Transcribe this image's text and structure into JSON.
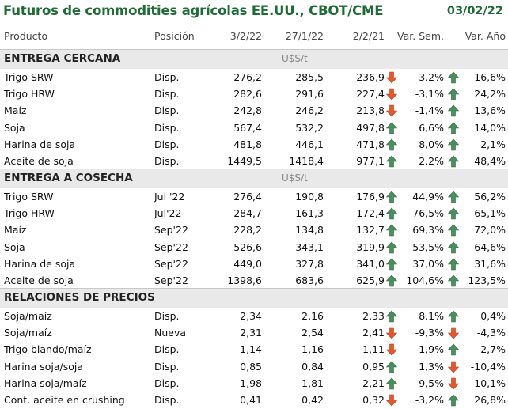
{
  "header": {
    "title": "Futuros de commodities agrícolas EE.UU., CBOT/CME",
    "date": "03/02/22"
  },
  "columns": {
    "product": "Producto",
    "position": "Posición",
    "d1": "3/2/22",
    "d2": "27/1/22",
    "d3": "2/2/21",
    "week": "Var. Sem.",
    "year": "Var. Año"
  },
  "colors": {
    "title": "#1e6b35",
    "up": "#4a8f5f",
    "down": "#d9512c",
    "section_bg": "#e9e9e9"
  },
  "sections": [
    {
      "title": "ENTREGA CERCANA",
      "unit": "U$S/t",
      "rows": [
        {
          "product": "Trigo SRW",
          "position": "Disp.",
          "d1": "276,2",
          "d2": "285,5",
          "d3": "236,9",
          "d3_icon": "arrow-down-icon",
          "week": "-3,2%",
          "week_icon": "arrow-up-icon",
          "year": "16,6%"
        },
        {
          "product": "Trigo HRW",
          "position": "Disp.",
          "d1": "282,6",
          "d2": "291,6",
          "d3": "227,4",
          "d3_icon": "arrow-down-icon",
          "week": "-3,1%",
          "week_icon": "arrow-up-icon",
          "year": "24,2%"
        },
        {
          "product": "Maíz",
          "position": "Disp.",
          "d1": "242,8",
          "d2": "246,2",
          "d3": "213,8",
          "d3_icon": "arrow-down-icon",
          "week": "-1,4%",
          "week_icon": "arrow-up-icon",
          "year": "13,6%"
        },
        {
          "product": "Soja",
          "position": "Disp.",
          "d1": "567,4",
          "d2": "532,2",
          "d3": "497,8",
          "d3_icon": "arrow-up-icon",
          "week": "6,6%",
          "week_icon": "arrow-up-icon",
          "year": "14,0%"
        },
        {
          "product": "Harina de soja",
          "position": "Disp.",
          "d1": "481,8",
          "d2": "446,1",
          "d3": "471,8",
          "d3_icon": "arrow-up-icon",
          "week": "8,0%",
          "week_icon": "arrow-up-icon",
          "year": "2,1%"
        },
        {
          "product": "Aceite de soja",
          "position": "Disp.",
          "d1": "1449,5",
          "d2": "1418,4",
          "d3": "977,1",
          "d3_icon": "arrow-up-icon",
          "week": "2,2%",
          "week_icon": "arrow-up-icon",
          "year": "48,4%"
        }
      ]
    },
    {
      "title": "ENTREGA A COSECHA",
      "unit": "U$S/t",
      "rows": [
        {
          "product": "Trigo SRW",
          "position": "Jul '22",
          "d1": "276,4",
          "d2": "190,8",
          "d3": "176,9",
          "d3_icon": "arrow-up-icon",
          "week": "44,9%",
          "week_icon": "arrow-up-icon",
          "year": "56,2%"
        },
        {
          "product": "Trigo HRW",
          "position": "Jul'22",
          "d1": "284,7",
          "d2": "161,3",
          "d3": "172,4",
          "d3_icon": "arrow-up-icon",
          "week": "76,5%",
          "week_icon": "arrow-up-icon",
          "year": "65,1%"
        },
        {
          "product": "Maíz",
          "position": "Sep'22",
          "d1": "228,2",
          "d2": "134,8",
          "d3": "132,7",
          "d3_icon": "arrow-up-icon",
          "week": "69,3%",
          "week_icon": "arrow-up-icon",
          "year": "72,0%"
        },
        {
          "product": "Soja",
          "position": "Sep'22",
          "d1": "526,6",
          "d2": "343,1",
          "d3": "319,9",
          "d3_icon": "arrow-up-icon",
          "week": "53,5%",
          "week_icon": "arrow-up-icon",
          "year": "64,6%"
        },
        {
          "product": "Harina de soja",
          "position": "Sep'22",
          "d1": "449,0",
          "d2": "327,8",
          "d3": "341,0",
          "d3_icon": "arrow-up-icon",
          "week": "37,0%",
          "week_icon": "arrow-up-icon",
          "year": "31,6%"
        },
        {
          "product": "Aceite de soja",
          "position": "Sep'22",
          "d1": "1398,6",
          "d2": "683,6",
          "d3": "625,9",
          "d3_icon": "arrow-up-icon",
          "week": "104,6%",
          "week_icon": "arrow-up-icon",
          "year": "123,5%"
        }
      ]
    },
    {
      "title": "RELACIONES DE PRECIOS",
      "unit": "",
      "rows": [
        {
          "product": "Soja/maíz",
          "position": "Disp.",
          "d1": "2,34",
          "d2": "2,16",
          "d3": "2,33",
          "d3_icon": "arrow-up-icon",
          "week": "8,1%",
          "week_icon": "arrow-up-icon",
          "year": "0,4%"
        },
        {
          "product": "Soja/maíz",
          "position": "Nueva",
          "d1": "2,31",
          "d2": "2,54",
          "d3": "2,41",
          "d3_icon": "arrow-down-icon",
          "week": "-9,3%",
          "week_icon": "arrow-down-icon",
          "year": "-4,3%"
        },
        {
          "product": "Trigo blando/maíz",
          "position": "Disp.",
          "d1": "1,14",
          "d2": "1,16",
          "d3": "1,11",
          "d3_icon": "arrow-down-icon",
          "week": "-1,9%",
          "week_icon": "arrow-up-icon",
          "year": "2,7%"
        },
        {
          "product": "Harina soja/soja",
          "position": "Disp.",
          "d1": "0,85",
          "d2": "0,84",
          "d3": "0,95",
          "d3_icon": "arrow-up-icon",
          "week": "1,3%",
          "week_icon": "arrow-down-icon",
          "year": "-10,4%"
        },
        {
          "product": "Harina soja/maíz",
          "position": "Disp.",
          "d1": "1,98",
          "d2": "1,81",
          "d3": "2,21",
          "d3_icon": "arrow-up-icon",
          "week": "9,5%",
          "week_icon": "arrow-down-icon",
          "year": "-10,1%"
        },
        {
          "product": "Cont. aceite en crushing",
          "position": "Disp.",
          "d1": "0,41",
          "d2": "0,42",
          "d3": "0,32",
          "d3_icon": "arrow-down-icon",
          "week": "-3,2%",
          "week_icon": "arrow-up-icon",
          "year": "26,8%"
        }
      ]
    }
  ]
}
